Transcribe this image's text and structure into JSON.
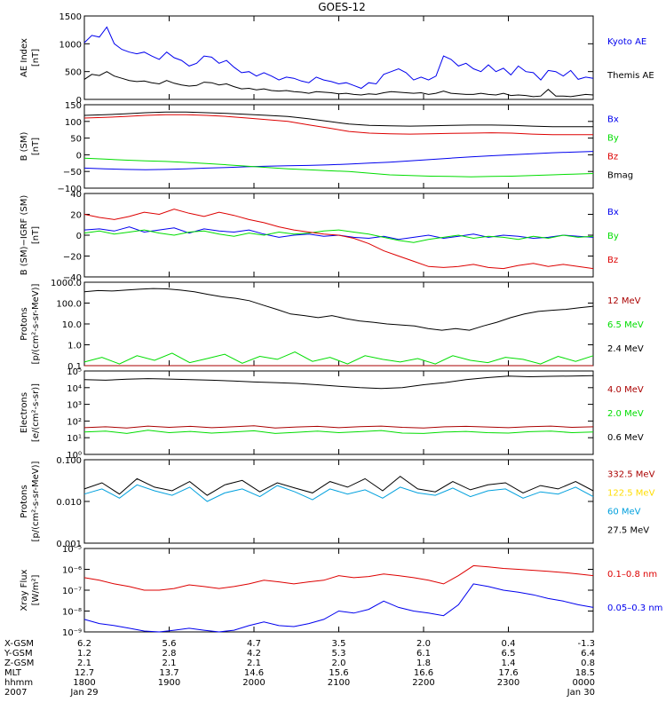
{
  "title": "GOES-12",
  "colors": {
    "black": "#000000",
    "blue": "#0000ee",
    "green": "#00dd00",
    "red": "#dd0000",
    "darkred": "#aa0000",
    "yellow": "#ffdd00",
    "cyan": "#00a0dd"
  },
  "chart_data": [
    {
      "type": "line",
      "title": "",
      "ylabel": [
        "AE Index",
        "[nT]"
      ],
      "ylim": [
        0,
        1500
      ],
      "log": false,
      "ticks": [
        0,
        500,
        1000,
        1500
      ],
      "tick_labels": [
        "0",
        "500",
        "1000",
        "1500"
      ],
      "series": [
        {
          "name": "Kyoto AE",
          "color": "blue",
          "values": [
            1020,
            1150,
            1120,
            1300,
            1000,
            900,
            850,
            820,
            850,
            780,
            720,
            850,
            750,
            700,
            600,
            650,
            780,
            760,
            650,
            700,
            580,
            480,
            500,
            420,
            480,
            420,
            350,
            400,
            380,
            330,
            300,
            400,
            350,
            320,
            280,
            300,
            250,
            200,
            300,
            280,
            450,
            500,
            550,
            480,
            350,
            400,
            350,
            420,
            780,
            720,
            600,
            650,
            550,
            500,
            620,
            500,
            560,
            440,
            600,
            500,
            480,
            350,
            520,
            500,
            420,
            520,
            360,
            400,
            380
          ]
        },
        {
          "name": "Themis AE",
          "color": "black",
          "values": [
            360,
            450,
            430,
            500,
            420,
            380,
            340,
            320,
            330,
            300,
            280,
            340,
            290,
            260,
            240,
            250,
            310,
            300,
            260,
            280,
            230,
            190,
            200,
            170,
            190,
            160,
            150,
            160,
            140,
            130,
            110,
            140,
            130,
            120,
            100,
            110,
            90,
            80,
            100,
            90,
            120,
            140,
            130,
            120,
            110,
            120,
            90,
            110,
            150,
            110,
            100,
            90,
            90,
            110,
            90,
            80,
            110,
            70,
            80,
            70,
            50,
            60,
            180,
            60,
            60,
            50,
            70,
            90,
            80
          ]
        }
      ]
    },
    {
      "type": "line",
      "title": "",
      "ylabel": [
        "B (SM)",
        "[nT]"
      ],
      "ylim": [
        -100,
        150
      ],
      "log": false,
      "ticks": [
        -100,
        -50,
        0,
        50,
        100,
        150
      ],
      "tick_labels": [
        "−100",
        "−50",
        "0",
        "50",
        "100",
        "150"
      ],
      "series": [
        {
          "name": "Bx",
          "color": "blue",
          "values": [
            -40,
            -42,
            -44,
            -45,
            -44,
            -42,
            -40,
            -38,
            -36,
            -34,
            -33,
            -32,
            -30,
            -28,
            -25,
            -22,
            -18,
            -14,
            -10,
            -6,
            -3,
            0,
            3,
            6,
            8,
            10
          ]
        },
        {
          "name": "By",
          "color": "green",
          "values": [
            -10,
            -13,
            -16,
            -18,
            -20,
            -23,
            -26,
            -30,
            -34,
            -38,
            -42,
            -45,
            -48,
            -50,
            -55,
            -60,
            -62,
            -64,
            -65,
            -66,
            -65,
            -64,
            -62,
            -60,
            -58,
            -56
          ]
        },
        {
          "name": "Bz",
          "color": "red",
          "values": [
            110,
            112,
            115,
            118,
            120,
            120,
            118,
            115,
            110,
            105,
            100,
            90,
            80,
            70,
            65,
            63,
            62,
            63,
            64,
            65,
            66,
            65,
            62,
            60,
            60,
            60
          ]
        },
        {
          "name": "Bmag",
          "color": "black",
          "values": [
            118,
            120,
            123,
            126,
            128,
            128,
            126,
            124,
            121,
            118,
            115,
            108,
            100,
            92,
            88,
            87,
            86,
            87,
            88,
            89,
            89,
            88,
            86,
            84,
            84,
            84
          ]
        }
      ]
    },
    {
      "type": "line",
      "title": "",
      "ylabel": [
        "B (SM)−IGRF (SM)",
        "[nT]"
      ],
      "ylim": [
        -40,
        40
      ],
      "log": false,
      "ticks": [
        -40,
        -20,
        0,
        20,
        40
      ],
      "tick_labels": [
        "−40",
        "−20",
        "0",
        "20",
        "40"
      ],
      "series": [
        {
          "name": "Bx",
          "color": "blue",
          "values": [
            5,
            6,
            4,
            8,
            3,
            5,
            7,
            2,
            6,
            4,
            3,
            5,
            1,
            -2,
            0,
            1,
            -1,
            0,
            -2,
            -3,
            -1,
            -4,
            -2,
            0,
            -3,
            -1,
            1,
            -2,
            0,
            -1,
            -3,
            -2,
            0,
            -1,
            -2
          ]
        },
        {
          "name": "By",
          "color": "green",
          "values": [
            2,
            4,
            1,
            3,
            5,
            2,
            0,
            3,
            4,
            1,
            -1,
            2,
            0,
            3,
            1,
            2,
            4,
            5,
            3,
            1,
            -2,
            -5,
            -7,
            -4,
            -2,
            0,
            -3,
            -1,
            -2,
            -4,
            -1,
            -3,
            0,
            -2,
            -1
          ]
        },
        {
          "name": "Bz",
          "color": "red",
          "values": [
            20,
            17,
            15,
            18,
            22,
            20,
            25,
            21,
            18,
            22,
            19,
            15,
            12,
            8,
            5,
            3,
            1,
            0,
            -3,
            -8,
            -15,
            -20,
            -25,
            -30,
            -31,
            -30,
            -28,
            -31,
            -32,
            -29,
            -27,
            -30,
            -28,
            -30,
            -32
          ]
        }
      ]
    },
    {
      "type": "line",
      "title": "",
      "ylabel": [
        "Protons",
        "[p/(cm²-s-sr-MeV)]"
      ],
      "ylim": [
        0.1,
        1000
      ],
      "log": true,
      "ticks": [
        0.1,
        1,
        10,
        100,
        1000
      ],
      "tick_labels": [
        "0.1",
        "1.0",
        "10.0",
        "100.0",
        "1000.0"
      ],
      "series": [
        {
          "name": "12 MeV",
          "color": "darkred",
          "values": [
            0.1,
            0.1,
            0.1,
            0.1,
            0.1,
            0.1,
            0.1,
            0.1,
            0.1,
            0.1,
            0.1,
            0.1,
            0.1,
            0.1,
            0.1,
            0.1,
            0.1,
            0.1,
            0.1,
            0.1,
            0.1,
            0.1,
            0.1,
            0.1,
            0.1,
            0.1,
            0.1,
            0.1,
            0.1,
            0.1
          ]
        },
        {
          "name": "6.5 MeV",
          "color": "green",
          "values": [
            0.15,
            0.25,
            0.12,
            0.3,
            0.18,
            0.4,
            0.14,
            0.22,
            0.35,
            0.13,
            0.28,
            0.2,
            0.45,
            0.16,
            0.25,
            0.12,
            0.3,
            0.2,
            0.15,
            0.22,
            0.12,
            0.3,
            0.18,
            0.14,
            0.25,
            0.2,
            0.12,
            0.28,
            0.16,
            0.3
          ]
        },
        {
          "name": "2.4 MeV",
          "color": "black",
          "values": [
            350,
            400,
            380,
            420,
            460,
            500,
            480,
            420,
            350,
            260,
            200,
            170,
            130,
            80,
            50,
            30,
            25,
            20,
            25,
            18,
            14,
            12,
            10,
            9,
            8,
            6,
            5,
            6,
            5,
            8,
            12,
            20,
            30,
            40,
            45,
            50,
            60,
            70
          ]
        }
      ]
    },
    {
      "type": "line",
      "title": "",
      "ylabel": [
        "Electrons",
        "[e/(cm²-s-sr)]"
      ],
      "ylim": [
        1,
        100000
      ],
      "log": true,
      "ticks": [
        1,
        10,
        100,
        1000,
        10000,
        100000
      ],
      "tick_labels": [
        "10⁰",
        "10¹",
        "10²",
        "10³",
        "10⁴",
        "10⁵"
      ],
      "series": [
        {
          "name": "4.0 MeV",
          "color": "darkred",
          "values": [
            40,
            45,
            38,
            50,
            42,
            48,
            40,
            45,
            52,
            38,
            44,
            48,
            40,
            46,
            50,
            42,
            38,
            45,
            48,
            44,
            40,
            46,
            50,
            42,
            45
          ]
        },
        {
          "name": "2.0 MeV",
          "color": "green",
          "values": [
            22,
            25,
            18,
            28,
            20,
            24,
            19,
            22,
            26,
            18,
            21,
            25,
            20,
            23,
            27,
            19,
            18,
            22,
            24,
            20,
            19,
            23,
            25,
            20,
            22
          ]
        },
        {
          "name": "0.6 MeV",
          "color": "black",
          "values": [
            30000,
            28000,
            32000,
            35000,
            33000,
            30000,
            28000,
            25000,
            22000,
            20000,
            18000,
            15000,
            12000,
            10000,
            9000,
            10000,
            15000,
            20000,
            30000,
            40000,
            50000,
            45000,
            48000,
            50000,
            52000
          ]
        }
      ]
    },
    {
      "type": "line",
      "title": "",
      "ylabel": [
        "Protons",
        "[p/(cm²-s-sr-MeV)]"
      ],
      "ylim": [
        0.001,
        0.1
      ],
      "log": true,
      "ticks": [
        0.001,
        0.01,
        0.1
      ],
      "tick_labels": [
        "0.001",
        "0.010",
        "0.100"
      ],
      "series": [
        {
          "name": "332.5 MeV",
          "color": "darkred",
          "values": []
        },
        {
          "name": "122.5 MeV",
          "color": "yellow",
          "values": []
        },
        {
          "name": "60 MeV",
          "color": "cyan",
          "values": [
            0.015,
            0.02,
            0.012,
            0.025,
            0.018,
            0.014,
            0.022,
            0.01,
            0.016,
            0.02,
            0.013,
            0.024,
            0.017,
            0.011,
            0.02,
            0.015,
            0.019,
            0.012,
            0.022,
            0.016,
            0.014,
            0.021,
            0.013,
            0.018,
            0.02,
            0.012,
            0.017,
            0.015,
            0.022,
            0.013
          ]
        },
        {
          "name": "27.5 MeV",
          "color": "black",
          "values": [
            0.02,
            0.028,
            0.015,
            0.035,
            0.022,
            0.018,
            0.03,
            0.014,
            0.025,
            0.032,
            0.017,
            0.028,
            0.021,
            0.016,
            0.03,
            0.022,
            0.035,
            0.018,
            0.04,
            0.02,
            0.017,
            0.03,
            0.019,
            0.025,
            0.028,
            0.016,
            0.024,
            0.02,
            0.03,
            0.018
          ]
        }
      ]
    },
    {
      "type": "line",
      "title": "",
      "ylabel": [
        "Xray Flux",
        "[W/m²]"
      ],
      "ylim": [
        1e-09,
        1e-05
      ],
      "log": true,
      "ticks": [
        1e-09,
        1e-08,
        1e-07,
        1e-06,
        1e-05
      ],
      "tick_labels": [
        "10⁻⁹",
        "10⁻⁸",
        "10⁻⁷",
        "10⁻⁶",
        "10⁻⁵"
      ],
      "series": [
        {
          "name": "0.1–0.8 nm",
          "color": "red",
          "values": [
            4e-07,
            3e-07,
            2e-07,
            1.5e-07,
            1e-07,
            1e-07,
            1.2e-07,
            1.8e-07,
            1.5e-07,
            1.2e-07,
            1.5e-07,
            2e-07,
            3e-07,
            2.5e-07,
            2e-07,
            2.5e-07,
            3e-07,
            5e-07,
            4e-07,
            4.5e-07,
            6e-07,
            5e-07,
            4e-07,
            3e-07,
            2e-07,
            5e-07,
            1.5e-06,
            1.3e-06,
            1.1e-06,
            1e-06,
            9e-07,
            8e-07,
            7e-07,
            6e-07,
            5e-07
          ]
        },
        {
          "name": "0.05–0.3 nm",
          "color": "blue",
          "values": [
            4e-09,
            2.5e-09,
            2e-09,
            1.5e-09,
            1.1e-09,
            1e-09,
            1.2e-09,
            1.5e-09,
            1.2e-09,
            1e-09,
            1.2e-09,
            2e-09,
            3e-09,
            2e-09,
            1.8e-09,
            2.5e-09,
            4e-09,
            1e-08,
            8e-09,
            1.2e-08,
            3e-08,
            1.5e-08,
            1e-08,
            8e-09,
            6e-09,
            2e-08,
            2e-07,
            1.5e-07,
            1e-07,
            8e-08,
            6e-08,
            4e-08,
            3e-08,
            2e-08,
            1.5e-08
          ]
        }
      ]
    }
  ],
  "bottom_axis": {
    "row_labels": [
      "X-GSM",
      "Y-GSM",
      "Z-GSM",
      "MLT",
      "hhmm",
      "2007"
    ],
    "columns": [
      [
        "6.2",
        "1.2",
        "2.1",
        "12.7",
        "1800",
        "Jan 29"
      ],
      [
        "5.6",
        "2.8",
        "2.1",
        "13.7",
        "1900",
        ""
      ],
      [
        "4.7",
        "4.2",
        "2.1",
        "14.6",
        "2000",
        ""
      ],
      [
        "3.5",
        "5.3",
        "2.0",
        "15.6",
        "2100",
        ""
      ],
      [
        "2.0",
        "6.1",
        "1.8",
        "16.6",
        "2200",
        ""
      ],
      [
        "0.4",
        "6.5",
        "1.4",
        "17.6",
        "2300",
        ""
      ],
      [
        "-1.3",
        "6.4",
        "0.8",
        "18.5",
        "0000",
        "Jan 30"
      ]
    ]
  }
}
